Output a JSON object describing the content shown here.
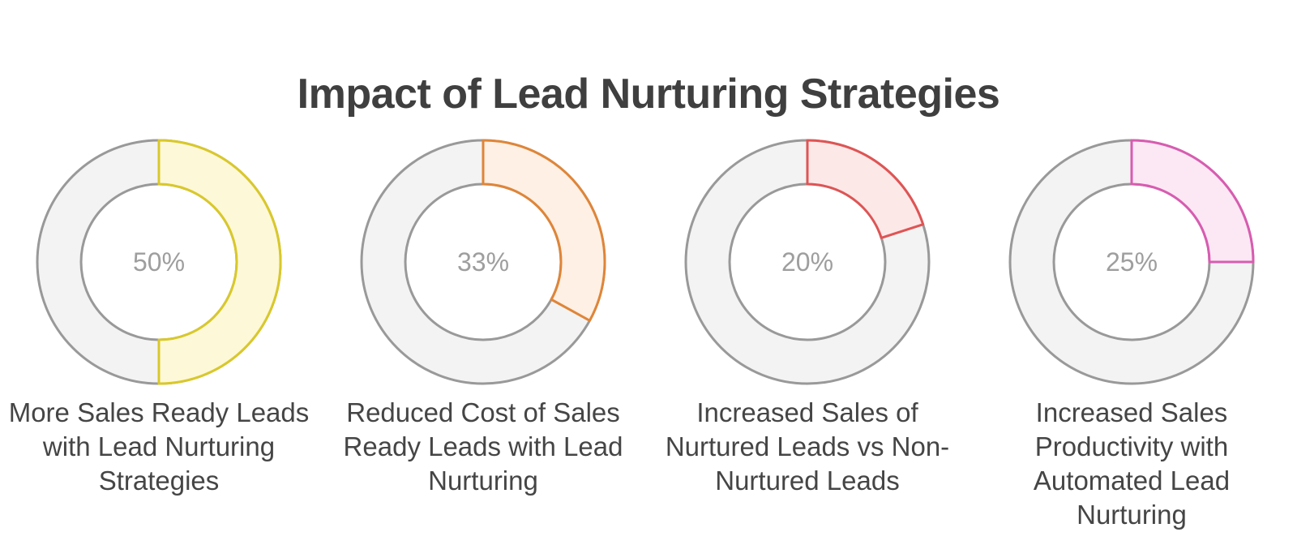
{
  "title": "Impact of Lead Nurturing Strategies",
  "chart_data": {
    "type": "pie",
    "variant": "donut",
    "items": [
      {
        "label": "More Sales Ready Leads with Lead Nurturing Strategies",
        "value": 50,
        "display": "50%",
        "stroke": "#d9c82a",
        "fill": "#fdf8d8"
      },
      {
        "label": "Reduced Cost of Sales Ready Leads with Lead Nurturing",
        "value": 33,
        "display": "33%",
        "stroke": "#df8538",
        "fill": "#fef0e4"
      },
      {
        "label": "Increased Sales of Nurtured Leads vs Non-Nurtured Leads",
        "value": 20,
        "display": "20%",
        "stroke": "#df5454",
        "fill": "#fde8e8"
      },
      {
        "label": "Increased Sales Productivity with Automated Lead Nurturing",
        "value": 25,
        "display": "25%",
        "stroke": "#d85cb0",
        "fill": "#fce8f5"
      }
    ],
    "track_color": "#f3f3f3",
    "outline_color": "#999999"
  }
}
